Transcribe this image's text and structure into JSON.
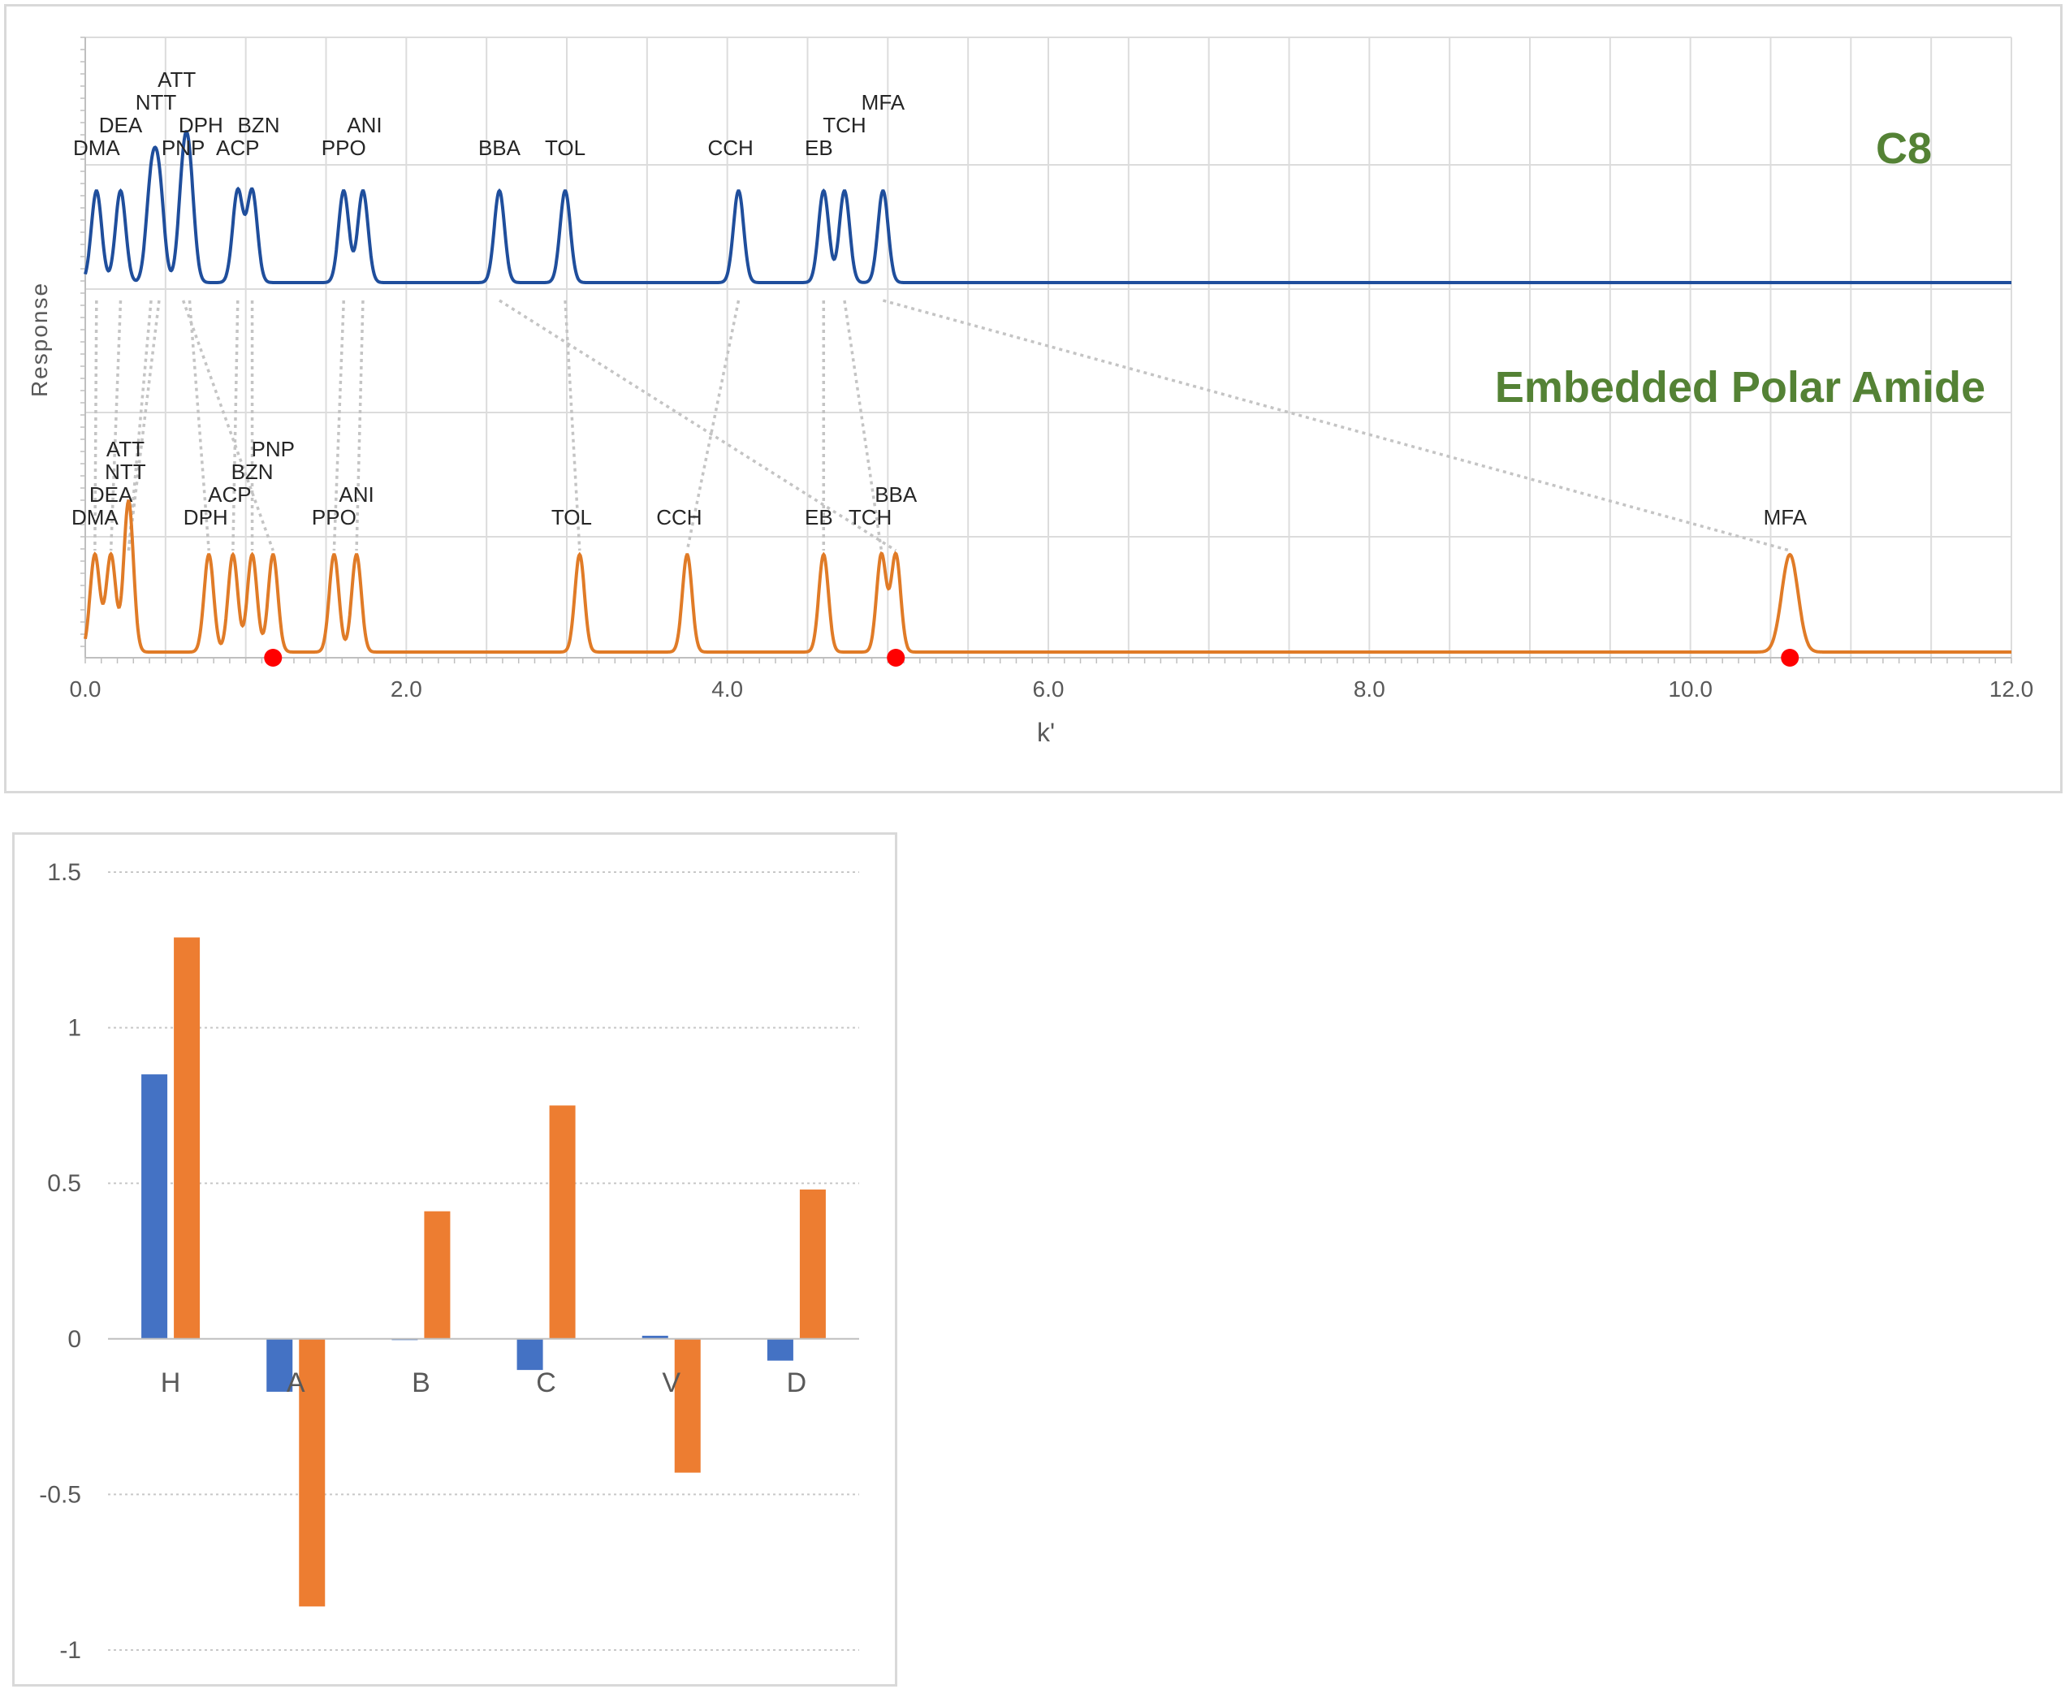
{
  "chart_data": [
    {
      "type": "line",
      "xlabel": "k'",
      "ylabel": "Response",
      "xlim": [
        0,
        12
      ],
      "x_ticks": [
        "0.0",
        "2.0",
        "4.0",
        "6.0",
        "8.0",
        "10.0",
        "12.0"
      ],
      "grid": true,
      "series": [
        {
          "name": "C8",
          "color": "#1f4e9c",
          "label_color": "#548235",
          "peaks": [
            {
              "label": "DMA",
              "k": 0.07
            },
            {
              "label": "DEA",
              "k": 0.22
            },
            {
              "label": "NTT",
              "k": 0.41
            },
            {
              "label": "ATT",
              "k": 0.46
            },
            {
              "label": "PNP",
              "k": 0.61
            },
            {
              "label": "DPH",
              "k": 0.65
            },
            {
              "label": "ACP",
              "k": 0.95
            },
            {
              "label": "BZN",
              "k": 1.04
            },
            {
              "label": "PPO",
              "k": 1.61
            },
            {
              "label": "ANI",
              "k": 1.73
            },
            {
              "label": "BBA",
              "k": 2.58
            },
            {
              "label": "TOL",
              "k": 2.99
            },
            {
              "label": "CCH",
              "k": 4.07
            },
            {
              "label": "EB",
              "k": 4.6
            },
            {
              "label": "TCH",
              "k": 4.73
            },
            {
              "label": "MFA",
              "k": 4.97
            }
          ]
        },
        {
          "name": "Embedded Polar Amide",
          "color": "#e07b27",
          "label_color": "#548235",
          "peaks": [
            {
              "label": "DMA",
              "k": 0.06
            },
            {
              "label": "DEA",
              "k": 0.16
            },
            {
              "label": "NTT",
              "k": 0.27
            },
            {
              "label": "ATT",
              "k": 0.27
            },
            {
              "label": "DPH",
              "k": 0.77
            },
            {
              "label": "ACP",
              "k": 0.92
            },
            {
              "label": "BZN",
              "k": 1.04
            },
            {
              "label": "PNP",
              "k": 1.17
            },
            {
              "label": "PPO",
              "k": 1.55
            },
            {
              "label": "ANI",
              "k": 1.69
            },
            {
              "label": "TOL",
              "k": 3.08
            },
            {
              "label": "CCH",
              "k": 3.75
            },
            {
              "label": "EB",
              "k": 4.6
            },
            {
              "label": "TCH",
              "k": 4.96
            },
            {
              "label": "BBA",
              "k": 5.05
            },
            {
              "label": "MFA",
              "k": 10.62
            }
          ],
          "marked_points": [
            1.17,
            5.05,
            10.62
          ]
        }
      ]
    },
    {
      "type": "bar",
      "categories": [
        "H",
        "A",
        "B",
        "C",
        "V",
        "D"
      ],
      "ylim": [
        -1,
        1.5
      ],
      "y_ticks": [
        "1.5",
        "1",
        "0.5",
        "0",
        "-0.5",
        "-1"
      ],
      "grid": true,
      "series": [
        {
          "color": "#4472c4",
          "values": [
            0.85,
            -0.17,
            0.0,
            -0.1,
            0.01,
            -0.07
          ]
        },
        {
          "color": "#ed7d31",
          "values": [
            1.29,
            -0.86,
            0.41,
            0.75,
            -0.43,
            0.48
          ]
        }
      ]
    }
  ]
}
